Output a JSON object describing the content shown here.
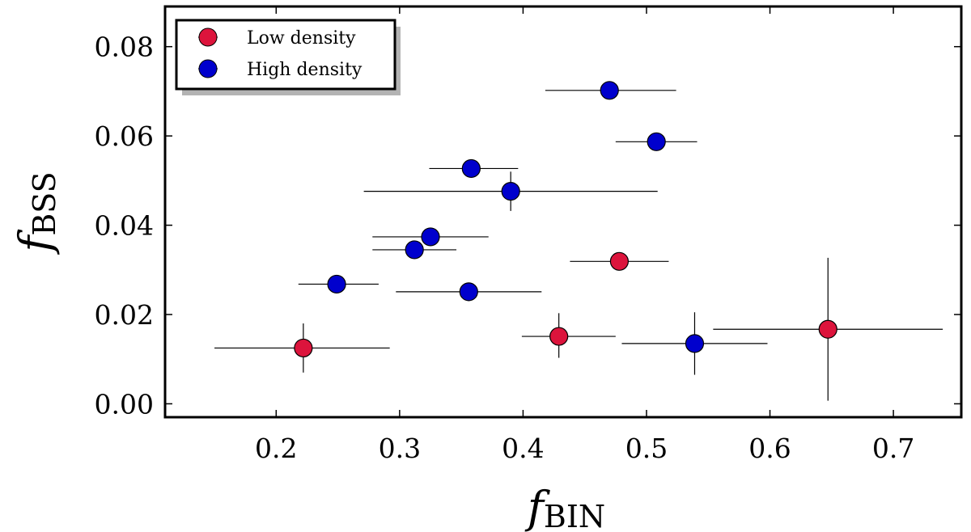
{
  "chart_data": {
    "type": "scatter",
    "title": "",
    "xlabel": {
      "main": "f",
      "sub": "BIN"
    },
    "ylabel": {
      "main": "f",
      "sub": "BSS"
    },
    "xlim": [
      0.11,
      0.755
    ],
    "ylim": [
      -0.003,
      0.089
    ],
    "xticks": [
      0.2,
      0.3,
      0.4,
      0.5,
      0.6,
      0.7
    ],
    "xtick_labels": [
      "0.2",
      "0.3",
      "0.4",
      "0.5",
      "0.6",
      "0.7"
    ],
    "yticks": [
      0.0,
      0.02,
      0.04,
      0.06,
      0.08
    ],
    "ytick_labels": [
      "0.00",
      "0.02",
      "0.04",
      "0.06",
      "0.08"
    ],
    "grid": false,
    "legend_position": "top-left",
    "series": [
      {
        "name": "Low density",
        "color": "#dc143c",
        "points": [
          {
            "x": 0.222,
            "y": 0.0125,
            "xerr": [
              0.072,
              0.07
            ],
            "yerr": [
              0.0055,
              0.0055
            ]
          },
          {
            "x": 0.429,
            "y": 0.0151,
            "xerr": [
              0.03,
              0.046
            ],
            "yerr": [
              0.0048,
              0.0052
            ]
          },
          {
            "x": 0.478,
            "y": 0.0319,
            "xerr": [
              0.04,
              0.04
            ],
            "yerr": [
              0,
              0
            ]
          },
          {
            "x": 0.647,
            "y": 0.0167,
            "xerr": [
              0.093,
              0.093
            ],
            "yerr": [
              0.016,
              0.016
            ]
          }
        ]
      },
      {
        "name": "High density",
        "color": "#0000cd",
        "points": [
          {
            "x": 0.249,
            "y": 0.0268,
            "xerr": [
              0.031,
              0.034
            ],
            "yerr": [
              0,
              0
            ]
          },
          {
            "x": 0.312,
            "y": 0.0345,
            "xerr": [
              0.034,
              0.034
            ],
            "yerr": [
              0,
              0
            ]
          },
          {
            "x": 0.325,
            "y": 0.0374,
            "xerr": [
              0.047,
              0.047
            ],
            "yerr": [
              0,
              0
            ]
          },
          {
            "x": 0.356,
            "y": 0.0251,
            "xerr": [
              0.059,
              0.059
            ],
            "yerr": [
              0,
              0
            ]
          },
          {
            "x": 0.358,
            "y": 0.0527,
            "xerr": [
              0.034,
              0.038
            ],
            "yerr": [
              0,
              0
            ]
          },
          {
            "x": 0.39,
            "y": 0.0476,
            "xerr": [
              0.119,
              0.119
            ],
            "yerr": [
              0.0044,
              0.0044
            ]
          },
          {
            "x": 0.47,
            "y": 0.0702,
            "xerr": [
              0.052,
              0.054
            ],
            "yerr": [
              0,
              0
            ]
          },
          {
            "x": 0.508,
            "y": 0.0587,
            "xerr": [
              0.033,
              0.033
            ],
            "yerr": [
              0,
              0
            ]
          },
          {
            "x": 0.539,
            "y": 0.0135,
            "xerr": [
              0.059,
              0.059
            ],
            "yerr": [
              0.007,
              0.007
            ]
          }
        ]
      }
    ]
  }
}
